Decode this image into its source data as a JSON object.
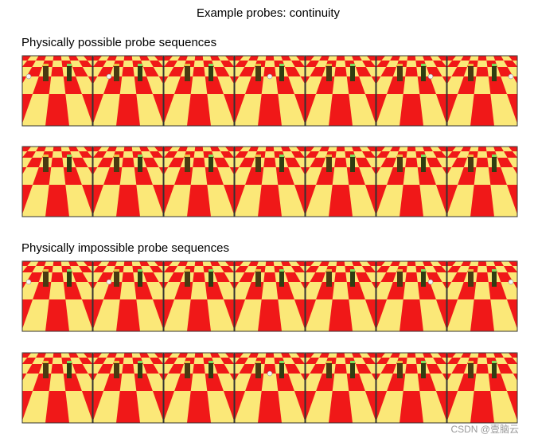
{
  "title": "Example probes: continuity",
  "sections": [
    {
      "label": "Physically possible probe sequences"
    },
    {
      "label": "Physically impossible probe sequences"
    }
  ],
  "watermark": "CSDN @壹脑云"
}
